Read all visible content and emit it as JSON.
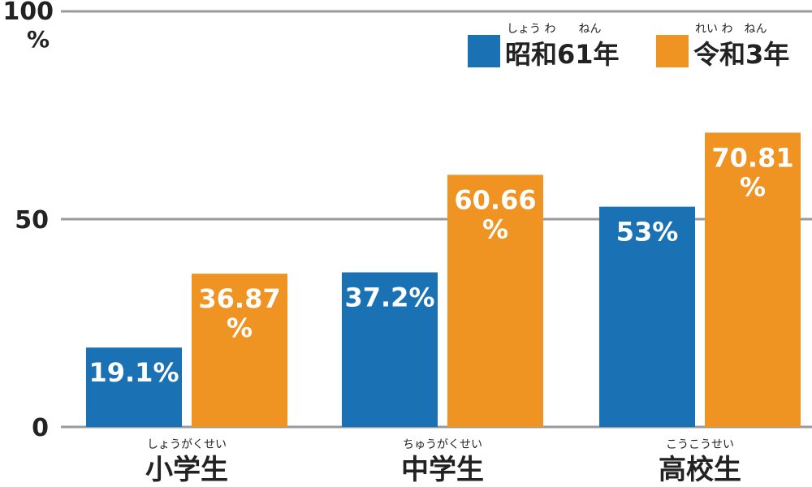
{
  "chart_data": {
    "type": "bar",
    "categories": [
      "小学生",
      "中学生",
      "高校生"
    ],
    "category_ruby": [
      "しょうがくせい",
      "ちゅうがくせい",
      "こうこうせい"
    ],
    "series": [
      {
        "name": "昭和61年",
        "ruby": "しょう わ　　ねん",
        "color": "#1a72b5",
        "values": [
          19.1,
          37.2,
          53
        ],
        "labels": [
          "19.1%",
          "37.2%",
          "53%"
        ]
      },
      {
        "name": "令和3年",
        "ruby": "れい わ　ねん",
        "color": "#ef9422",
        "values": [
          36.87,
          60.66,
          70.81
        ],
        "labels": [
          "36.87\n%",
          "60.66\n%",
          "70.81\n%"
        ]
      }
    ],
    "y_ticks": [
      "0",
      "50",
      "100"
    ],
    "y_unit": "%",
    "ylim": [
      0,
      100
    ],
    "grid": true,
    "legend_position": "top-right"
  }
}
